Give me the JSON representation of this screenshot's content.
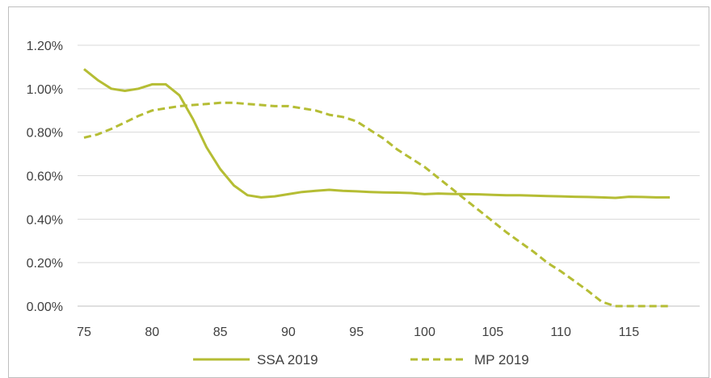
{
  "chart_data": {
    "type": "line",
    "x": [
      75,
      76,
      77,
      78,
      79,
      80,
      81,
      82,
      83,
      84,
      85,
      86,
      87,
      88,
      89,
      90,
      91,
      92,
      93,
      94,
      95,
      96,
      97,
      98,
      99,
      100,
      101,
      102,
      103,
      104,
      105,
      106,
      107,
      108,
      109,
      110,
      111,
      112,
      113,
      114,
      115,
      116,
      117,
      118
    ],
    "series": [
      {
        "name": "SSA 2019",
        "style": "solid",
        "values": [
          1.09,
          1.04,
          1.0,
          0.99,
          1.0,
          1.02,
          1.02,
          0.97,
          0.86,
          0.73,
          0.63,
          0.555,
          0.51,
          0.5,
          0.505,
          0.515,
          0.525,
          0.53,
          0.535,
          0.53,
          0.528,
          0.525,
          0.523,
          0.522,
          0.52,
          0.515,
          0.518,
          0.516,
          0.515,
          0.514,
          0.512,
          0.51,
          0.51,
          0.508,
          0.506,
          0.505,
          0.503,
          0.502,
          0.5,
          0.498,
          0.503,
          0.502,
          0.5,
          0.5
        ]
      },
      {
        "name": "MP 2019",
        "style": "dashed",
        "values": [
          0.775,
          0.79,
          0.815,
          0.845,
          0.875,
          0.9,
          0.91,
          0.92,
          0.925,
          0.93,
          0.935,
          0.935,
          0.93,
          0.925,
          0.92,
          0.92,
          0.91,
          0.9,
          0.88,
          0.87,
          0.85,
          0.81,
          0.77,
          0.72,
          0.68,
          0.64,
          0.59,
          0.54,
          0.49,
          0.44,
          0.39,
          0.34,
          0.295,
          0.25,
          0.2,
          0.16,
          0.115,
          0.07,
          0.02,
          0.0,
          0.0,
          0.0,
          0.0,
          0.0
        ]
      }
    ],
    "x_ticks": [
      75,
      80,
      85,
      90,
      95,
      100,
      105,
      110,
      115
    ],
    "y_ticks": [
      "0.00%",
      "0.20%",
      "0.40%",
      "0.60%",
      "0.80%",
      "1.00%",
      "1.20%"
    ],
    "y_tick_values": [
      0.0,
      0.2,
      0.4,
      0.6,
      0.8,
      1.0,
      1.2
    ],
    "xlim": [
      75,
      118
    ],
    "ylim": [
      0,
      1.2
    ],
    "grid": "horizontal",
    "legend_position": "bottom",
    "line_color": "#b5bd34"
  }
}
